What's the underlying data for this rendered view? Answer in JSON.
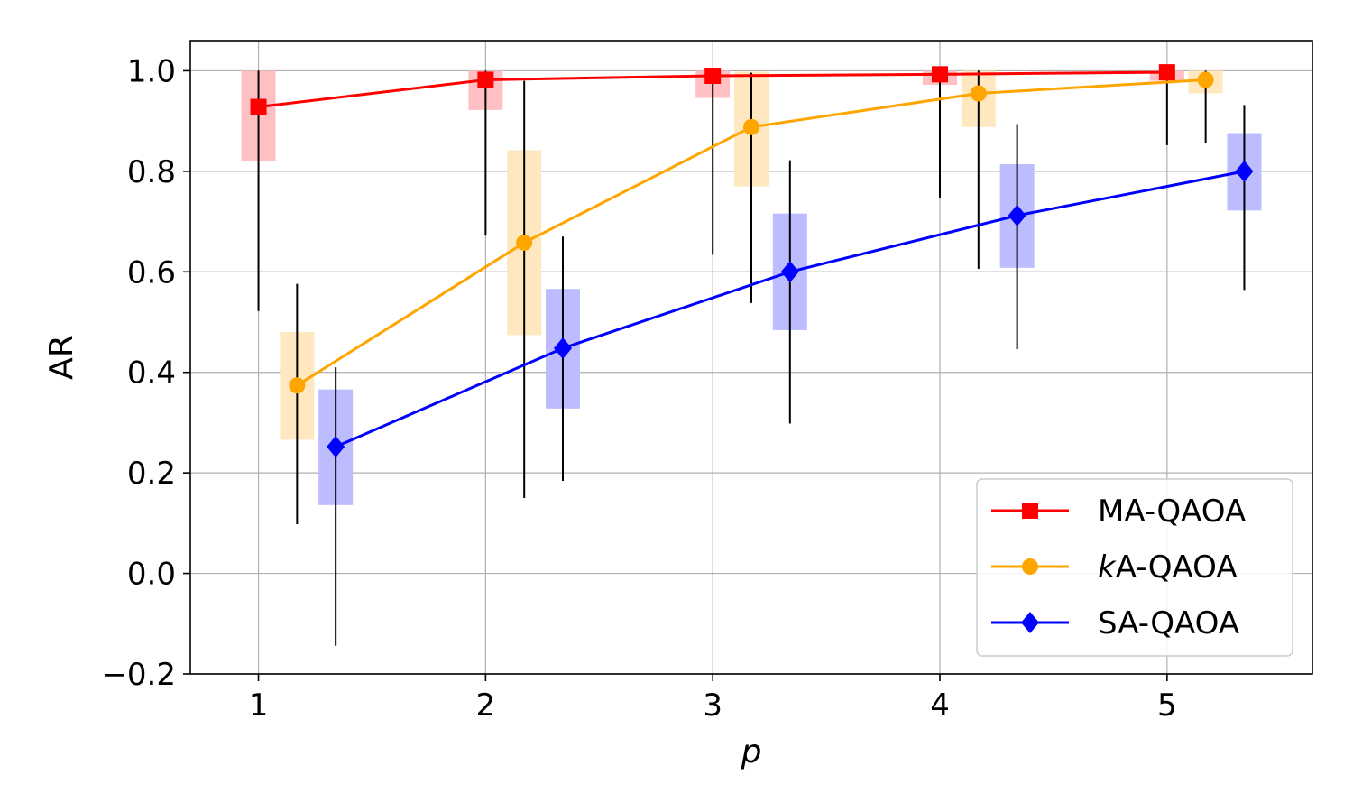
{
  "chart_data": {
    "type": "line",
    "xlabel": "p",
    "ylabel": "AR",
    "xlim": [
      0.7,
      5.64
    ],
    "ylim": [
      -0.2,
      1.06
    ],
    "xticks": [
      1,
      2,
      3,
      4,
      5
    ],
    "yticks": [
      -0.2,
      0.0,
      0.2,
      0.4,
      0.6,
      0.8,
      1.0
    ],
    "ytick_labels": [
      "−0.2",
      "0.0",
      "0.2",
      "0.4",
      "0.6",
      "0.8",
      "1.0"
    ],
    "grid": true,
    "legend_position": "lower-right",
    "series": [
      {
        "name": "MA-QAOA",
        "name_prefix": "",
        "name_rest": "MA-QAOA",
        "color": "#ff0000",
        "band_color": "#ffc0c4",
        "marker": "square",
        "offset": 0.0,
        "x": [
          1,
          2,
          3,
          4,
          5
        ],
        "y": [
          0.928,
          0.982,
          0.99,
          0.993,
          0.997
        ],
        "band": [
          [
            0.82,
            1.0
          ],
          [
            0.922,
            1.0
          ],
          [
            0.946,
            1.0
          ],
          [
            0.972,
            1.0
          ],
          [
            0.98,
            1.0
          ]
        ],
        "whisker": [
          [
            0.522,
            1.0
          ],
          [
            0.672,
            1.0
          ],
          [
            0.634,
            1.0
          ],
          [
            0.748,
            1.0
          ],
          [
            0.852,
            1.0
          ]
        ]
      },
      {
        "name": "kA-QAOA",
        "name_prefix": "k",
        "name_rest": "A-QAOA",
        "color": "#ffa500",
        "band_color": "#ffe8bf",
        "marker": "circle",
        "offset": 0.17,
        "x": [
          1,
          2,
          3,
          4,
          5
        ],
        "y": [
          0.374,
          0.658,
          0.888,
          0.955,
          0.982
        ],
        "band": [
          [
            0.266,
            0.48
          ],
          [
            0.474,
            0.842
          ],
          [
            0.77,
            0.998
          ],
          [
            0.888,
            1.0
          ],
          [
            0.955,
            1.0
          ]
        ],
        "whisker": [
          [
            0.098,
            0.576
          ],
          [
            0.15,
            0.98
          ],
          [
            0.538,
            0.996
          ],
          [
            0.606,
            1.0
          ],
          [
            0.856,
            1.0
          ]
        ]
      },
      {
        "name": "SA-QAOA",
        "name_prefix": "",
        "name_rest": "SA-QAOA",
        "color": "#0000ff",
        "band_color": "#bcbcff",
        "marker": "diamond",
        "offset": 0.34,
        "x": [
          1,
          2,
          3,
          4,
          5
        ],
        "y": [
          0.252,
          0.448,
          0.6,
          0.712,
          0.8
        ],
        "band": [
          [
            0.136,
            0.366
          ],
          [
            0.328,
            0.566
          ],
          [
            0.484,
            0.716
          ],
          [
            0.608,
            0.814
          ],
          [
            0.722,
            0.876
          ]
        ],
        "whisker": [
          [
            -0.144,
            0.41
          ],
          [
            0.184,
            0.67
          ],
          [
            0.298,
            0.822
          ],
          [
            0.446,
            0.894
          ],
          [
            0.564,
            0.932
          ]
        ]
      }
    ]
  }
}
